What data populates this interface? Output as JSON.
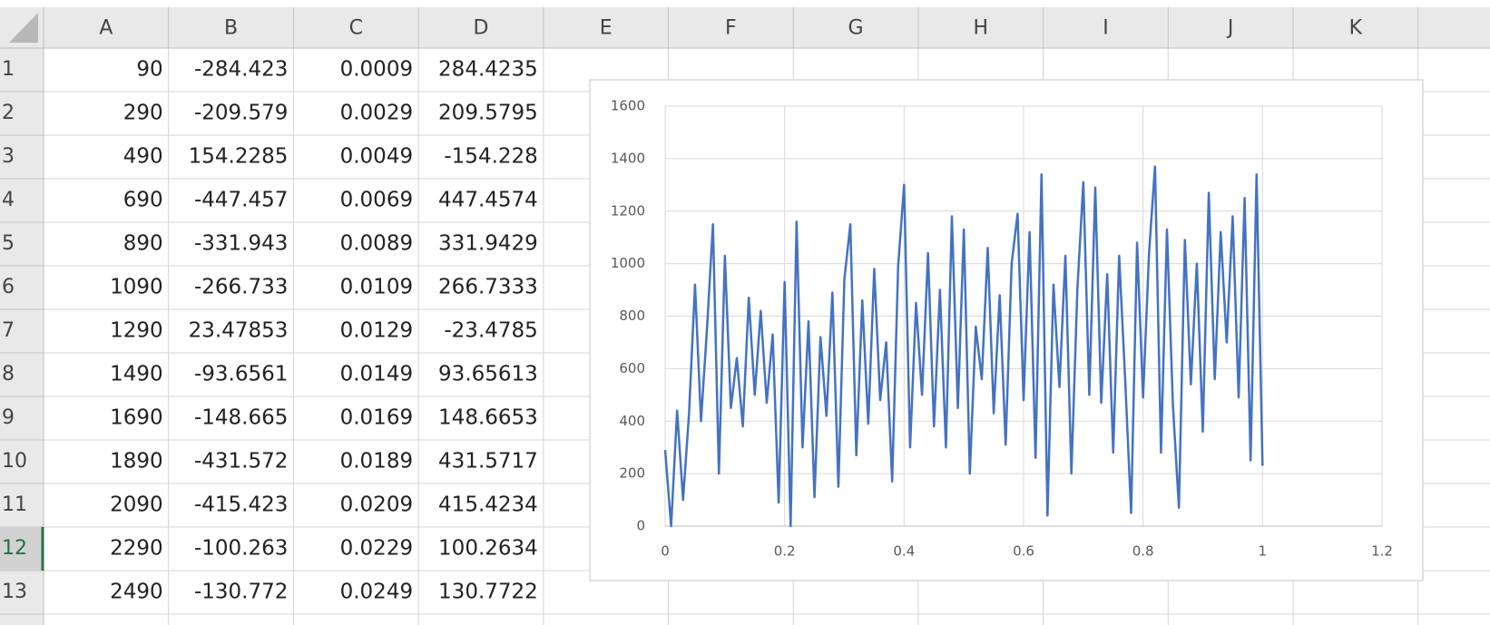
{
  "sheet": {
    "columns": [
      "A",
      "B",
      "C",
      "D",
      "E",
      "F",
      "G",
      "H",
      "I",
      "J",
      "K"
    ],
    "row_numbers": [
      "1",
      "2",
      "3",
      "4",
      "5",
      "6",
      "7",
      "8",
      "9",
      "10",
      "11",
      "12",
      "13"
    ],
    "rows": [
      [
        "90",
        "-284.423",
        "0.0009",
        "284.4235"
      ],
      [
        "290",
        "-209.579",
        "0.0029",
        "209.5795"
      ],
      [
        "490",
        "154.2285",
        "0.0049",
        "-154.228"
      ],
      [
        "690",
        "-447.457",
        "0.0069",
        "447.4574"
      ],
      [
        "890",
        "-331.943",
        "0.0089",
        "331.9429"
      ],
      [
        "1090",
        "-266.733",
        "0.0109",
        "266.7333"
      ],
      [
        "1290",
        "23.47853",
        "0.0129",
        "-23.4785"
      ],
      [
        "1490",
        "-93.6561",
        "0.0149",
        "93.65613"
      ],
      [
        "1690",
        "-148.665",
        "0.0169",
        "148.6653"
      ],
      [
        "1890",
        "-431.572",
        "0.0189",
        "431.5717"
      ],
      [
        "2090",
        "-415.423",
        "0.0209",
        "415.4234"
      ],
      [
        "2290",
        "-100.263",
        "0.0229",
        "100.2634"
      ],
      [
        "2490",
        "-130.772",
        "0.0249",
        "130.7722"
      ]
    ]
  },
  "chart_data": {
    "type": "line",
    "x": [
      0,
      0.01,
      0.02,
      0.03,
      0.04,
      0.05,
      0.06,
      0.07,
      0.08,
      0.09,
      0.1,
      0.11,
      0.12,
      0.13,
      0.14,
      0.15,
      0.16,
      0.17,
      0.18,
      0.19,
      0.2,
      0.21,
      0.22,
      0.23,
      0.24,
      0.25,
      0.26,
      0.27,
      0.28,
      0.29,
      0.3,
      0.31,
      0.32,
      0.33,
      0.34,
      0.35,
      0.36,
      0.37,
      0.38,
      0.39,
      0.4,
      0.41,
      0.42,
      0.43,
      0.44,
      0.45,
      0.46,
      0.47,
      0.48,
      0.49,
      0.5,
      0.51,
      0.52,
      0.53,
      0.54,
      0.55,
      0.56,
      0.57,
      0.58,
      0.59,
      0.6,
      0.61,
      0.62,
      0.63,
      0.64,
      0.65,
      0.66,
      0.67,
      0.68,
      0.69,
      0.7,
      0.71,
      0.72,
      0.73,
      0.74,
      0.75,
      0.76,
      0.77,
      0.78,
      0.79,
      0.8,
      0.81,
      0.82,
      0.83,
      0.84,
      0.85,
      0.86,
      0.87,
      0.88,
      0.89,
      0.9,
      0.91,
      0.92,
      0.93,
      0.94,
      0.95,
      0.96,
      0.97,
      0.98,
      0.99,
      1
    ],
    "values": [
      290,
      0,
      440,
      100,
      430,
      920,
      400,
      750,
      1150,
      200,
      1030,
      450,
      640,
      380,
      870,
      500,
      820,
      470,
      730,
      90,
      930,
      0,
      1160,
      300,
      780,
      110,
      720,
      420,
      890,
      150,
      940,
      1150,
      270,
      860,
      390,
      980,
      480,
      700,
      170,
      990,
      1300,
      300,
      850,
      500,
      1040,
      380,
      900,
      300,
      1180,
      450,
      1130,
      200,
      760,
      560,
      1060,
      430,
      880,
      310,
      1000,
      1190,
      480,
      1120,
      260,
      1340,
      40,
      920,
      530,
      1030,
      200,
      900,
      1310,
      500,
      1290,
      470,
      960,
      280,
      1030,
      560,
      50,
      1080,
      490,
      1040,
      1370,
      280,
      1130,
      460,
      70,
      1090,
      540,
      1000,
      360,
      1270,
      560,
      1120,
      700,
      1180,
      490,
      1250,
      250,
      1340,
      230
    ],
    "color": "#4472c4",
    "xlim": [
      0,
      1.2
    ],
    "xticks": [
      0,
      0.2,
      0.4,
      0.6,
      0.8,
      1,
      1.2
    ],
    "ylim": [
      0,
      1600
    ],
    "yticks": [
      0,
      200,
      400,
      600,
      800,
      1000,
      1200,
      1400,
      1600
    ],
    "grid": true
  }
}
